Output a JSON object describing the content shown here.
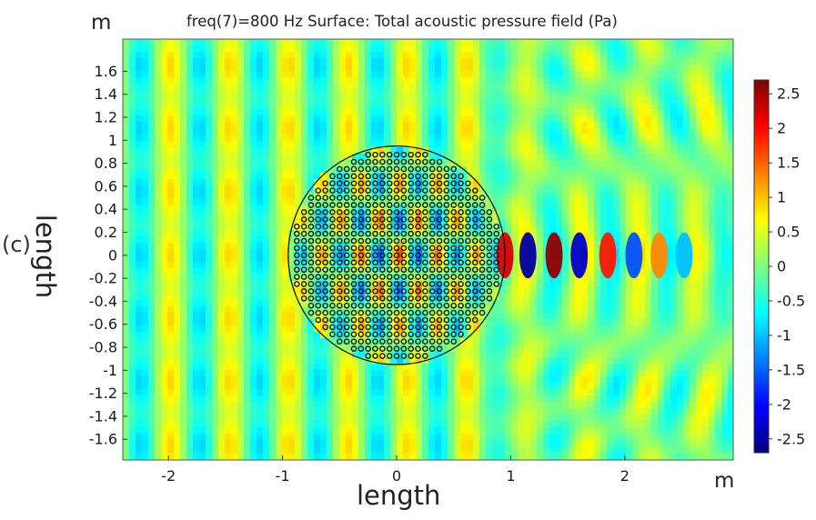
{
  "title": "freq(7)=800 Hz   Surface: Total acoustic pressure field (Pa)",
  "panel_label": "(c)",
  "unit_top": "m",
  "unit_bottom": "m",
  "chart_data": {
    "type": "heatmap",
    "title": "freq(7)=800 Hz   Surface: Total acoustic pressure field (Pa)",
    "xlabel": "length",
    "ylabel": "length",
    "x_unit": "m",
    "y_unit": "m",
    "xlim": [
      -2.4,
      2.95
    ],
    "ylim": [
      -1.78,
      1.88
    ],
    "x_ticks": [
      -2,
      -1,
      0,
      1,
      2
    ],
    "y_ticks": [
      -1.6,
      -1.4,
      -1.2,
      -1,
      -0.8,
      -0.6,
      -0.4,
      -0.2,
      0,
      0.2,
      0.4,
      0.6,
      0.8,
      1,
      1.2,
      1.4,
      1.6
    ],
    "colorbar": {
      "range": [
        -2.7,
        2.7
      ],
      "ticks": [
        2.5,
        2,
        1.5,
        1,
        0.5,
        0,
        -0.5,
        -1,
        -1.5,
        -2,
        -2.5
      ],
      "colormap": "jet"
    },
    "field": {
      "frequency_hz": 800,
      "quantity": "Total acoustic pressure field (Pa)",
      "scatterer_circle": {
        "center": [
          0,
          0
        ],
        "radius": 0.95
      },
      "cylinder_lattice_spacing": 0.0625,
      "hotspots": [
        {
          "x": 0.95,
          "y": 0.0,
          "value": 2.2
        },
        {
          "x": 1.15,
          "y": 0.0,
          "value": -2.5
        },
        {
          "x": 1.38,
          "y": 0.0,
          "value": 2.6
        },
        {
          "x": 1.6,
          "y": 0.0,
          "value": -2.3
        },
        {
          "x": 1.85,
          "y": 0.0,
          "value": 1.9
        },
        {
          "x": 2.08,
          "y": 0.0,
          "value": -1.6
        },
        {
          "x": 2.3,
          "y": 0.0,
          "value": 1.3
        },
        {
          "x": 2.52,
          "y": 0.0,
          "value": -1.0
        }
      ]
    }
  },
  "colors": {
    "jet": [
      "#00007f",
      "#0000ff",
      "#007fff",
      "#00ffff",
      "#7fff7f",
      "#ffff00",
      "#ff7f00",
      "#ff0000",
      "#7f0000"
    ]
  }
}
